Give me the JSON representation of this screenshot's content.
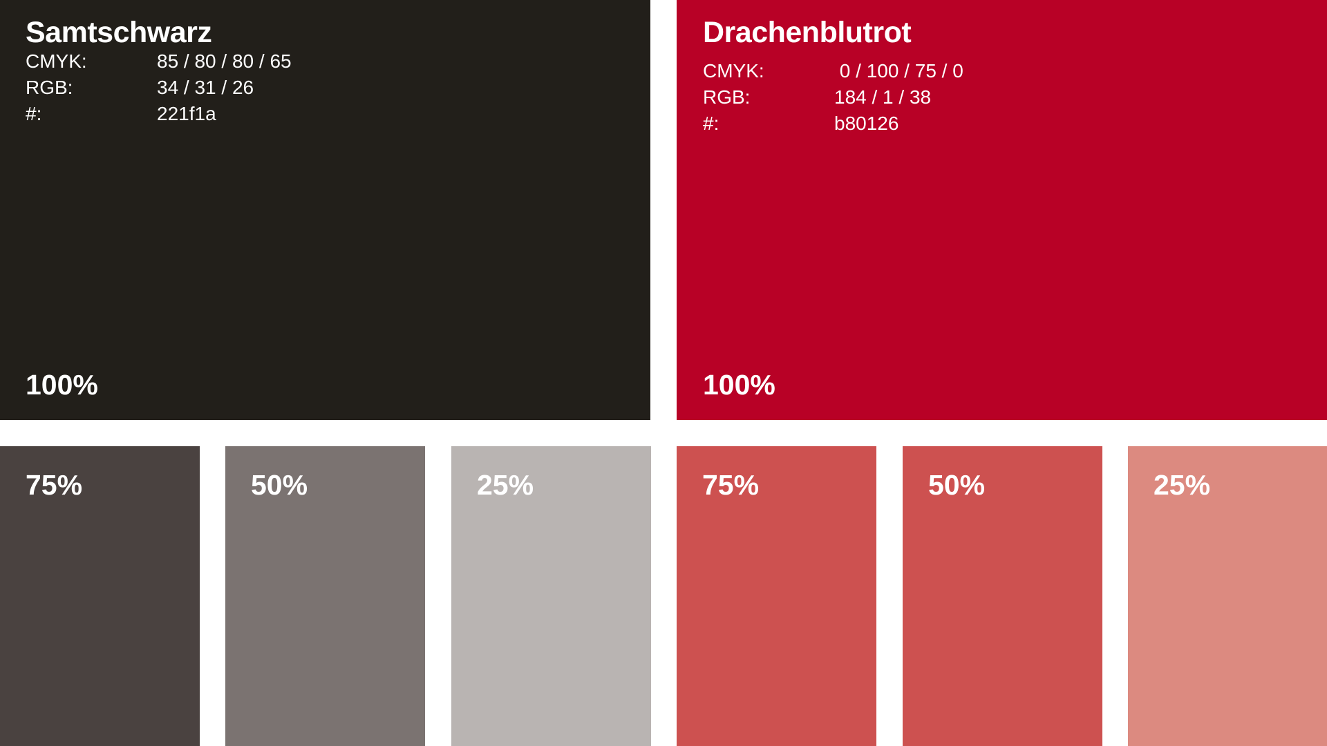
{
  "palette": {
    "black": {
      "name": "Samtschwarz",
      "color": "#221f1a",
      "specs": [
        {
          "label": "CMYK:",
          "value": "85 / 80 / 80 / 65"
        },
        {
          "label": "RGB:",
          "value": "34 / 31 / 26"
        },
        {
          "label": "#:",
          "value": "221f1a"
        }
      ],
      "full_label": "100%",
      "tints": [
        {
          "label": "75%",
          "color": "#4a4240"
        },
        {
          "label": "50%",
          "color": "#7b7371"
        },
        {
          "label": "25%",
          "color": "#b9b4b2"
        }
      ]
    },
    "red": {
      "name": "Drachenblutrot",
      "color": "#b80126",
      "specs": [
        {
          "label": "CMYK:",
          "value": " 0 / 100 / 75 / 0"
        },
        {
          "label": "RGB:",
          "value": "184 / 1 / 38"
        },
        {
          "label": "#:",
          "value": "b80126"
        }
      ],
      "full_label": "100%",
      "tints": [
        {
          "label": "75%",
          "color": "#cd5150"
        },
        {
          "label": "50%",
          "color": "#cd5150"
        },
        {
          "label": "25%",
          "color": "#dc8a80"
        }
      ]
    }
  }
}
